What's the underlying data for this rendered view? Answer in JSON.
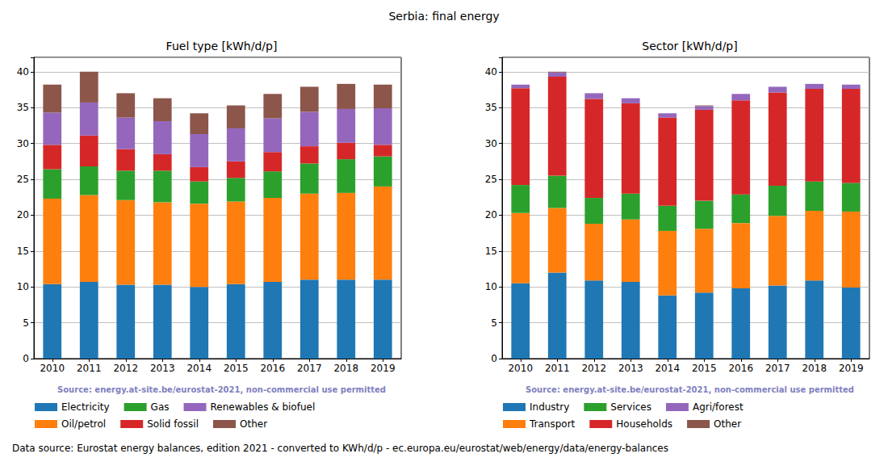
{
  "title": "Serbia: final energy",
  "footer": "Data source: Eurostat energy balances, edition 2021 - converted to KWh/d/p - ec.europa.eu/eurostat/web/energy/data/energy-balances",
  "chart_data": [
    {
      "type": "bar",
      "title": "Fuel type [kWh/d/p]",
      "annotation": "Source: energy.at-site.be/eurostat-2021, non-commercial use permitted",
      "stacked": true,
      "grid": true,
      "categories": [
        "2010",
        "2011",
        "2012",
        "2013",
        "2014",
        "2015",
        "2016",
        "2017",
        "2018",
        "2019"
      ],
      "ylim": [
        0,
        42
      ],
      "yticks": [
        0,
        5,
        10,
        15,
        20,
        25,
        30,
        35,
        40
      ],
      "series": [
        {
          "name": "Electricity",
          "color": "#1f77b4",
          "values": [
            10.4,
            10.7,
            10.3,
            10.3,
            10.0,
            10.4,
            10.7,
            11.0,
            11.0,
            11.0
          ]
        },
        {
          "name": "Oil/petrol",
          "color": "#ff7f0e",
          "values": [
            11.9,
            12.1,
            11.8,
            11.5,
            11.6,
            11.5,
            11.7,
            12.0,
            12.1,
            13.0
          ]
        },
        {
          "name": "Gas",
          "color": "#2ca02c",
          "values": [
            4.1,
            4.0,
            4.1,
            4.4,
            3.1,
            3.3,
            3.7,
            4.2,
            4.7,
            4.2
          ]
        },
        {
          "name": "Solid fossil",
          "color": "#d62728",
          "values": [
            3.4,
            4.3,
            3.0,
            2.3,
            2.0,
            2.3,
            2.7,
            2.4,
            2.3,
            1.6
          ]
        },
        {
          "name": "Renewables & biofuel",
          "color": "#9467bd",
          "values": [
            4.5,
            4.6,
            4.4,
            4.6,
            4.6,
            4.6,
            4.7,
            4.8,
            4.7,
            5.1
          ]
        },
        {
          "name": "Other",
          "color": "#8c564b",
          "values": [
            3.9,
            4.3,
            3.4,
            3.2,
            2.9,
            3.2,
            3.4,
            3.5,
            3.5,
            3.3
          ]
        }
      ]
    },
    {
      "type": "bar",
      "title": "Sector [kWh/d/p]",
      "annotation": "Source: energy.at-site.be/eurostat-2021, non-commercial use permitted",
      "stacked": true,
      "grid": true,
      "categories": [
        "2010",
        "2011",
        "2012",
        "2013",
        "2014",
        "2015",
        "2016",
        "2017",
        "2018",
        "2019"
      ],
      "ylim": [
        0,
        42
      ],
      "yticks": [
        0,
        5,
        10,
        15,
        20,
        25,
        30,
        35,
        40
      ],
      "series": [
        {
          "name": "Industry",
          "color": "#1f77b4",
          "values": [
            10.5,
            12.0,
            10.9,
            10.7,
            8.8,
            9.2,
            9.8,
            10.2,
            10.9,
            9.9
          ]
        },
        {
          "name": "Transport",
          "color": "#ff7f0e",
          "values": [
            9.8,
            9.0,
            7.9,
            8.7,
            9.0,
            8.9,
            9.1,
            9.7,
            9.7,
            10.6
          ]
        },
        {
          "name": "Services",
          "color": "#2ca02c",
          "values": [
            3.9,
            4.5,
            3.6,
            3.6,
            3.5,
            3.9,
            4.0,
            4.2,
            4.1,
            4.0
          ]
        },
        {
          "name": "Households",
          "color": "#d62728",
          "values": [
            13.5,
            13.8,
            13.8,
            12.6,
            12.3,
            12.7,
            13.1,
            13.0,
            12.9,
            13.1
          ]
        },
        {
          "name": "Agri/forest",
          "color": "#9467bd",
          "values": [
            0.5,
            0.6,
            0.8,
            0.7,
            0.6,
            0.5,
            0.9,
            0.8,
            0.7,
            0.6
          ]
        },
        {
          "name": "Other",
          "color": "#8c564b",
          "values": [
            0,
            0.1,
            0,
            0,
            0,
            0.1,
            0,
            0,
            0,
            0
          ]
        }
      ]
    }
  ]
}
